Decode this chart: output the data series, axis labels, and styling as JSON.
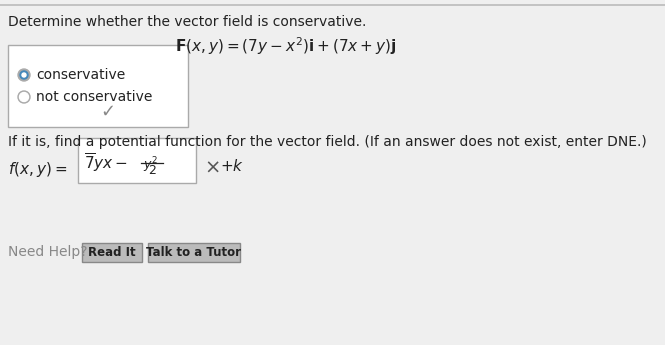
{
  "bg_color": "#efefef",
  "title_line": "Determine whether the vector field is conservative.",
  "radio_options": [
    "conservative",
    "not conservative"
  ],
  "potential_intro": "If it is, find a potential function for the vector field. (If an answer does not exist, enter DNE.)",
  "need_help_text": "Need Help?",
  "btn1_text": "Read It",
  "btn2_text": "Talk to a Tutor",
  "text_color": "#222222",
  "light_text": "#888888",
  "border_color": "#aaaaaa",
  "btn_bg": "#bbbbbb",
  "top_border": "#bbbbbb",
  "radio_outer": "#aaaaaa",
  "radio_selected": "#4488bb",
  "checkmark_color": "#888888",
  "cross_color": "#555555",
  "white": "#ffffff",
  "title_fontsize": 10.0,
  "body_fontsize": 10.0,
  "math_fontsize": 11.0,
  "small_fontsize": 8.5
}
